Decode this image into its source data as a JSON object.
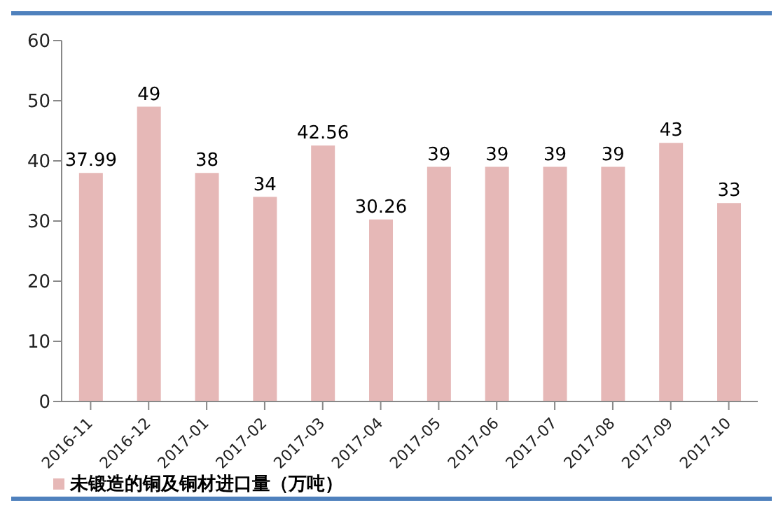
{
  "chart_data": {
    "type": "bar",
    "categories": [
      "2016-11",
      "2016-12",
      "2017-01",
      "2017-02",
      "2017-03",
      "2017-04",
      "2017-05",
      "2017-06",
      "2017-07",
      "2017-08",
      "2017-09",
      "2017-10"
    ],
    "series": [
      {
        "name": "未锻造的铜及铜材进口量（万吨）",
        "color": "#e6b8b7",
        "values": [
          37.99,
          49,
          38,
          34,
          42.56,
          30.26,
          39,
          39,
          39,
          39,
          43,
          33
        ]
      }
    ],
    "ylim": [
      0,
      60
    ],
    "yticks": [
      0,
      10,
      20,
      30,
      40,
      50,
      60
    ],
    "data_labels": true,
    "legend": "bottom left",
    "grid": false
  }
}
